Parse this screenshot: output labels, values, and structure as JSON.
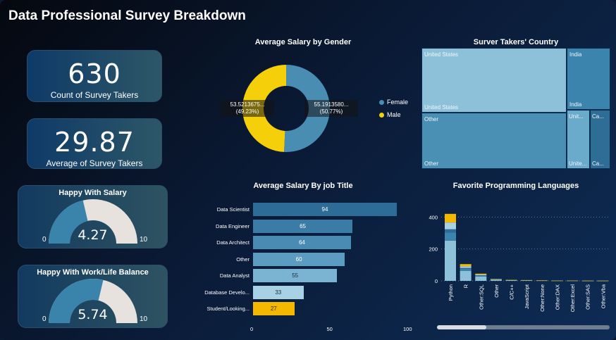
{
  "title": "Data Professional Survey Breakdown",
  "kpis": [
    {
      "value": "630",
      "label": "Count of Survey Takers"
    },
    {
      "value": "29.87",
      "label": "Average of Survey Takers"
    }
  ],
  "gauges": [
    {
      "title": "Happy With Salary",
      "value": "4.27",
      "min": "0",
      "max": "10",
      "level": 0.427
    },
    {
      "title": "Happy With Work/Life Balance",
      "value": "5.74",
      "min": "0",
      "max": "10",
      "level": 0.574
    }
  ],
  "colors": {
    "female": "#4a8db3",
    "male": "#f5cf0a",
    "bar_dark": "#2e6c98",
    "bar_light": "#a8d1e6",
    "highlight": "#f5b800"
  },
  "donut": {
    "title": "Average Salary by Gender",
    "labels": {
      "left": "53.5213675...",
      "left_pct": "(49.23%)",
      "right": "55.1913580...",
      "right_pct": "(50.77%)"
    },
    "legend": [
      {
        "name": "Female"
      },
      {
        "name": "Male"
      }
    ],
    "chart_data": {
      "type": "pie",
      "categories": [
        "Female",
        "Male"
      ],
      "values": [
        55.19,
        53.52
      ],
      "percents": [
        50.77,
        49.23
      ]
    }
  },
  "treemap": {
    "title": "Surver Takers' Country",
    "cells": [
      {
        "label": "United States",
        "bottom_label": "United States"
      },
      {
        "label": "India",
        "bottom_label": "India"
      },
      {
        "label": "Other",
        "bottom_label": "Other"
      },
      {
        "label": "Unit...",
        "bottom_label": "Unite..."
      },
      {
        "label": "Ca...",
        "bottom_label": "Ca..."
      }
    ]
  },
  "bars": {
    "title": "Average Salary By job Title",
    "chart_data": {
      "type": "bar",
      "categories": [
        "Data Scientist",
        "Data Engineer",
        "Data Architect",
        "Other",
        "Data Analyst",
        "Database Develo...",
        "Student/Looking..."
      ],
      "values": [
        94,
        65,
        64,
        60,
        55,
        33,
        27
      ],
      "xlim": [
        0,
        100
      ],
      "ticks": [
        "0",
        "50",
        "100"
      ]
    }
  },
  "languages": {
    "title": "Favorite Programming Languages",
    "chart_data": {
      "type": "bar",
      "categories": [
        "Python",
        "R",
        "Other:SQL",
        "Other",
        "C/C++",
        "JavaScript",
        "Other:None",
        "Other:DAX",
        "Other:Excel",
        "Other:SAS",
        "Other:Vba"
      ],
      "values": [
        420,
        105,
        45,
        12,
        6,
        5,
        3,
        2,
        2,
        1,
        1
      ],
      "ylim": [
        0,
        450
      ],
      "ticks": [
        "0",
        "200",
        "400"
      ]
    }
  }
}
